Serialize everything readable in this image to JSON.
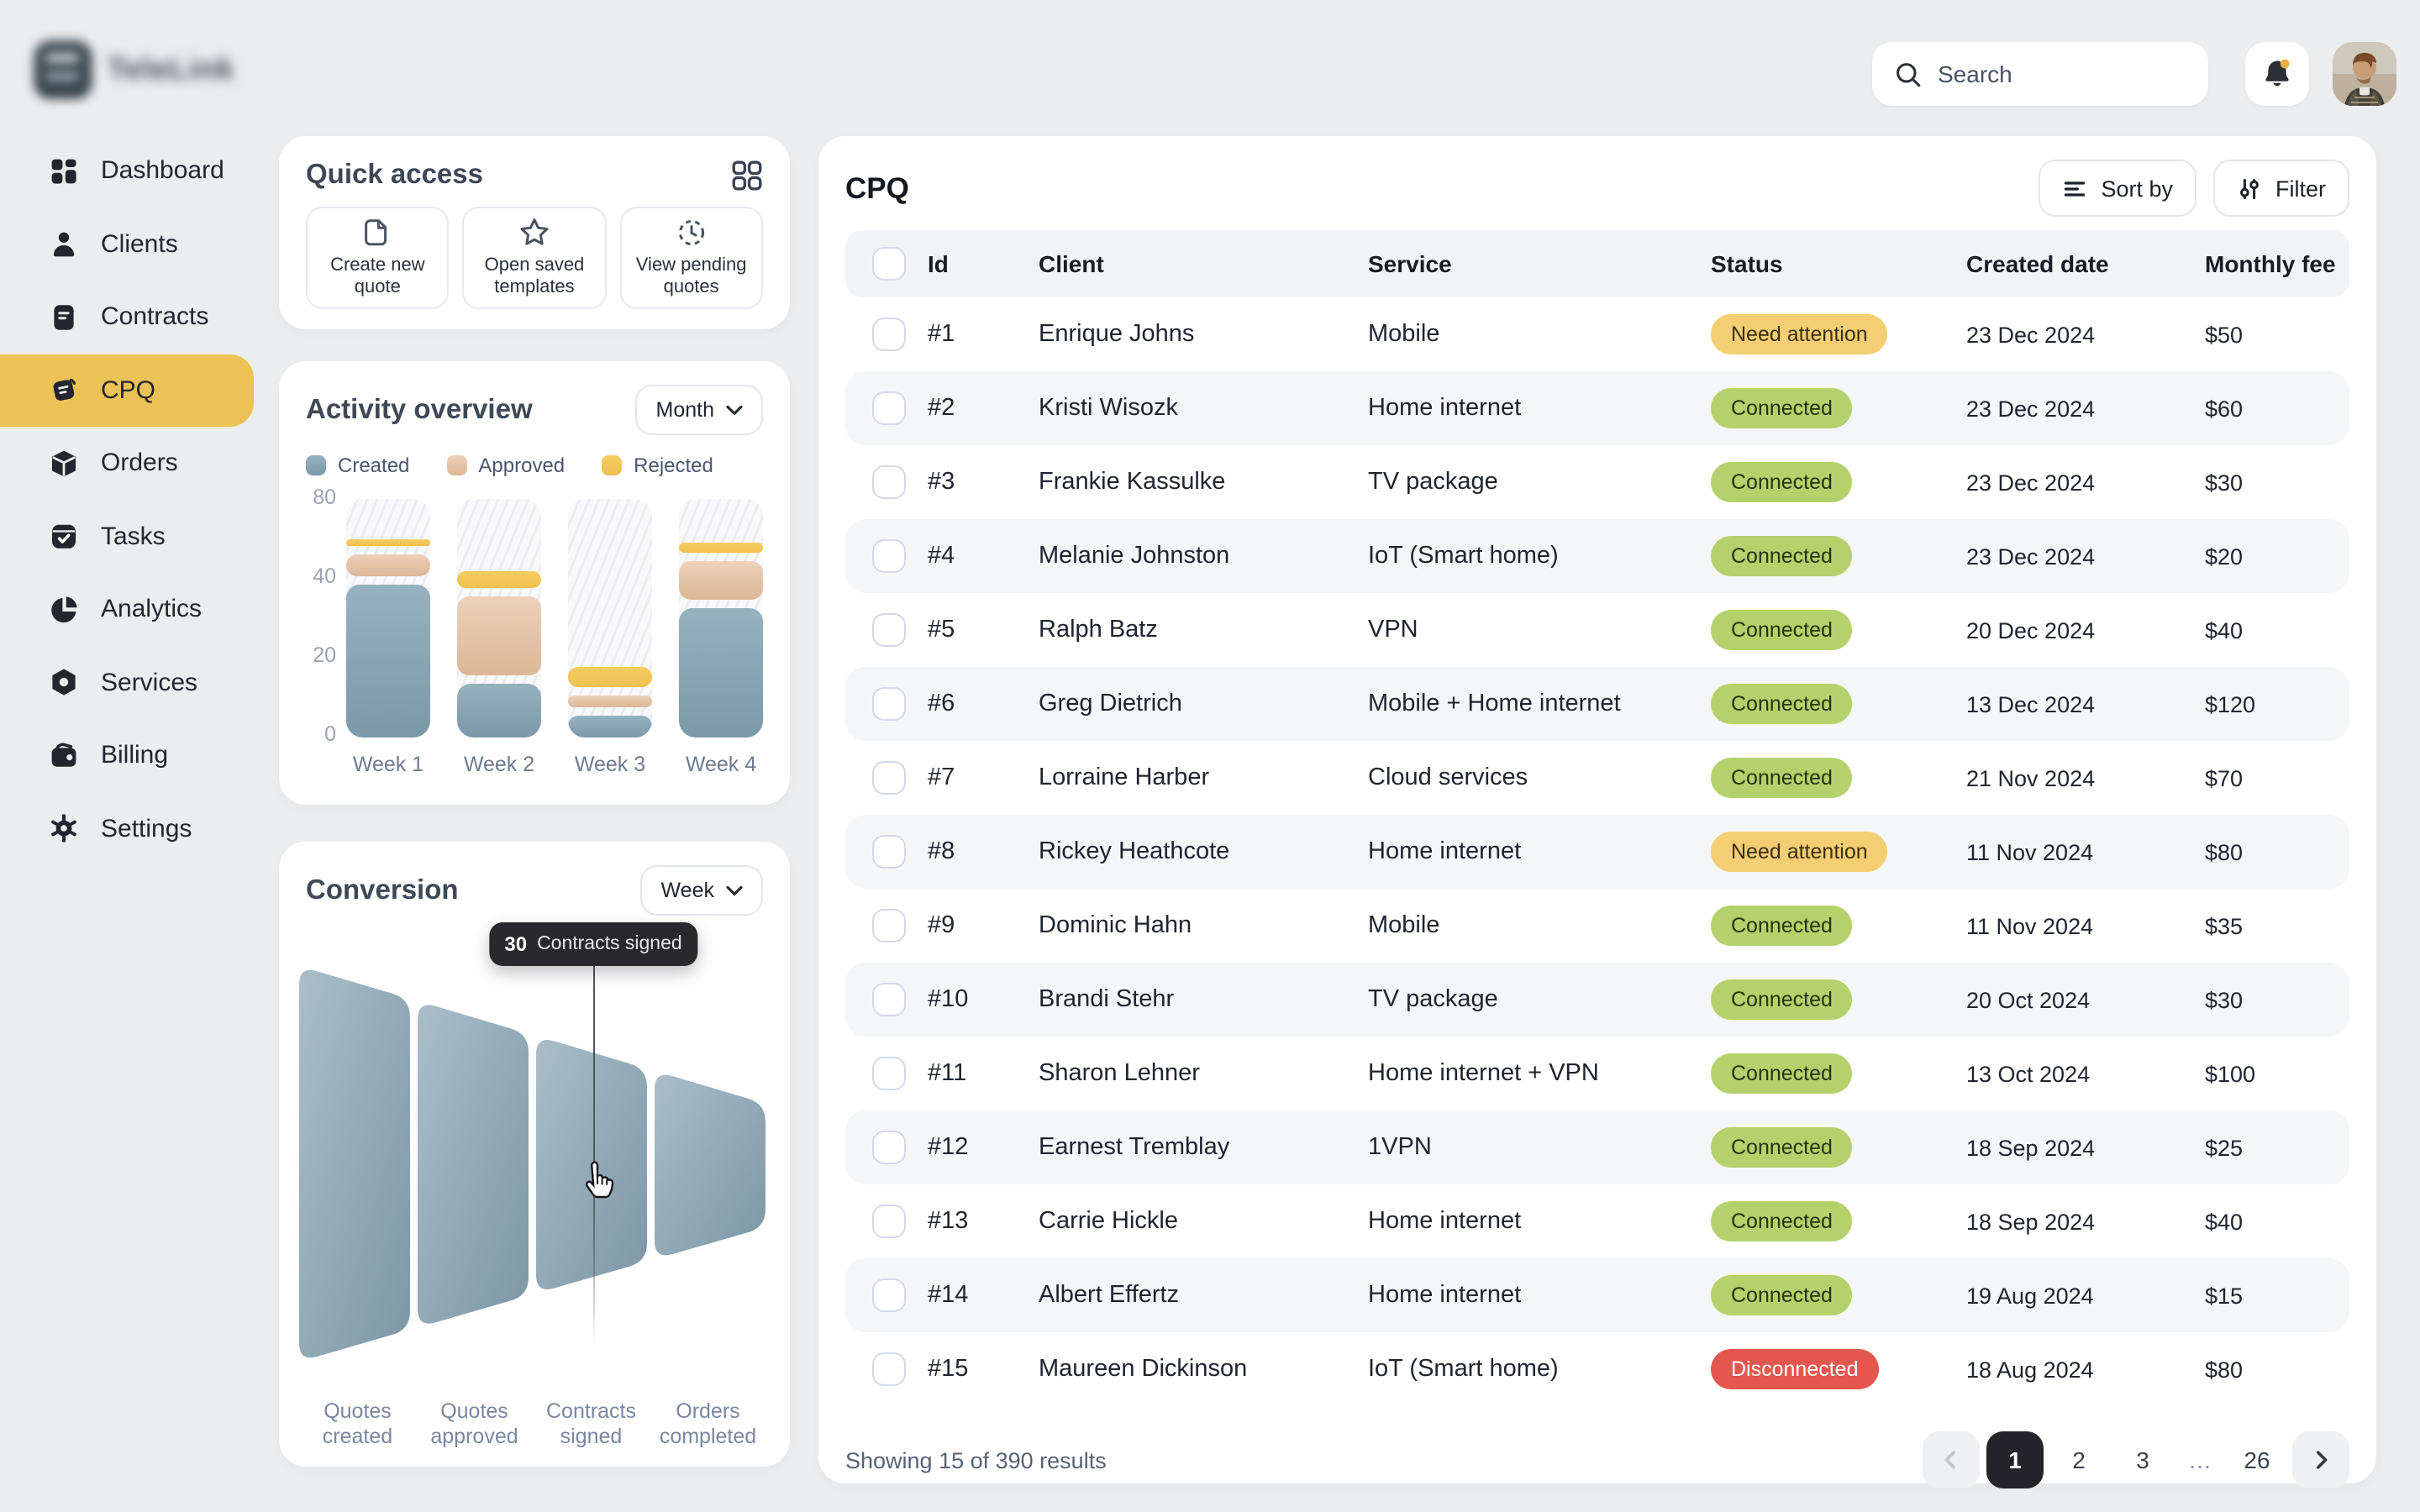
{
  "brand": {
    "name": "TeleLink"
  },
  "topbar": {
    "search_placeholder": "Search"
  },
  "sidebar": {
    "items": [
      {
        "id": "dashboard",
        "label": "Dashboard",
        "active": false
      },
      {
        "id": "clients",
        "label": "Clients",
        "active": false
      },
      {
        "id": "contracts",
        "label": "Contracts",
        "active": false
      },
      {
        "id": "cpq",
        "label": "CPQ",
        "active": true
      },
      {
        "id": "orders",
        "label": "Orders",
        "active": false
      },
      {
        "id": "tasks",
        "label": "Tasks",
        "active": false
      },
      {
        "id": "analytics",
        "label": "Analytics",
        "active": false
      },
      {
        "id": "services",
        "label": "Services",
        "active": false
      },
      {
        "id": "billing",
        "label": "Billing",
        "active": false
      },
      {
        "id": "settings",
        "label": "Settings",
        "active": false
      }
    ]
  },
  "quick_access": {
    "title": "Quick access",
    "actions": [
      {
        "id": "create-new-quote",
        "icon": "file",
        "label": "Create new\nquote"
      },
      {
        "id": "open-saved-templates",
        "icon": "star",
        "label": "Open saved\ntemplates"
      },
      {
        "id": "view-pending-quotes",
        "icon": "clock",
        "label": "View pending\nquotes"
      }
    ]
  },
  "activity": {
    "title": "Activity overview",
    "period": "Month",
    "chart_data": {
      "type": "bar",
      "stacked": true,
      "categories": [
        "Week 1",
        "Week 2",
        "Week 3",
        "Week 4"
      ],
      "series": [
        {
          "name": "Created",
          "color_top": "#97b1bf",
          "color_bottom": "#7b99a9",
          "values": [
            40,
            15,
            7,
            34
          ]
        },
        {
          "name": "Approved",
          "color_top": "#ecd1b9",
          "color_bottom": "#ddb797",
          "values": [
            15,
            22,
            5,
            18
          ]
        },
        {
          "name": "Rejected",
          "color_top": "#f6ce62",
          "color_bottom": "#eec04f",
          "values": [
            7,
            10,
            7,
            9
          ]
        }
      ],
      "y_ticks": [
        0,
        20,
        40,
        80
      ],
      "ylim": [
        0,
        80
      ],
      "axis_note": "ticks 0/20/40/80 evenly spaced",
      "legend_position": "top",
      "grid": false
    }
  },
  "conversion": {
    "title": "Conversion",
    "period": "Week",
    "tooltip": {
      "value": "30",
      "label": "Contracts signed"
    },
    "chart_data": {
      "type": "funnel",
      "stages": [
        {
          "label": "Quotes\ncreated"
        },
        {
          "label": "Quotes\napproved"
        },
        {
          "label": "Contracts\nsigned",
          "value": 30
        },
        {
          "label": "Orders\ncompleted"
        }
      ],
      "hovered_stage_index": 2
    }
  },
  "table": {
    "title": "CPQ",
    "sort_label": "Sort by",
    "filter_label": "Filter",
    "columns": [
      "Id",
      "Client",
      "Service",
      "Status",
      "Created date",
      "Monthly fee"
    ],
    "rows": [
      {
        "id": "#1",
        "client": "Enrique Johns",
        "service": "Mobile",
        "status": "Need attention",
        "status_type": "warning",
        "date": "23 Dec 2024",
        "fee": "$50"
      },
      {
        "id": "#2",
        "client": "Kristi Wisozk",
        "service": "Home internet",
        "status": "Connected",
        "status_type": "success",
        "date": "23 Dec 2024",
        "fee": "$60"
      },
      {
        "id": "#3",
        "client": "Frankie Kassulke",
        "service": "TV package",
        "status": "Connected",
        "status_type": "success",
        "date": "23 Dec 2024",
        "fee": "$30"
      },
      {
        "id": "#4",
        "client": "Melanie Johnston",
        "service": "IoT (Smart home)",
        "status": "Connected",
        "status_type": "success",
        "date": "23 Dec 2024",
        "fee": "$20"
      },
      {
        "id": "#5",
        "client": "Ralph Batz",
        "service": "VPN",
        "status": "Connected",
        "status_type": "success",
        "date": "20 Dec 2024",
        "fee": "$40"
      },
      {
        "id": "#6",
        "client": "Greg Dietrich",
        "service": "Mobile + Home internet",
        "status": "Connected",
        "status_type": "success",
        "date": "13 Dec 2024",
        "fee": "$120"
      },
      {
        "id": "#7",
        "client": "Lorraine Harber",
        "service": "Cloud services",
        "status": "Connected",
        "status_type": "success",
        "date": "21 Nov 2024",
        "fee": "$70"
      },
      {
        "id": "#8",
        "client": "Rickey Heathcote",
        "service": "Home internet",
        "status": "Need attention",
        "status_type": "warning",
        "date": "11 Nov 2024",
        "fee": "$80"
      },
      {
        "id": "#9",
        "client": "Dominic Hahn",
        "service": "Mobile",
        "status": "Connected",
        "status_type": "success",
        "date": "11 Nov 2024",
        "fee": "$35"
      },
      {
        "id": "#10",
        "client": "Brandi Stehr",
        "service": "TV package",
        "status": "Connected",
        "status_type": "success",
        "date": "20 Oct 2024",
        "fee": "$30"
      },
      {
        "id": "#11",
        "client": "Sharon Lehner",
        "service": "Home internet + VPN",
        "status": "Connected",
        "status_type": "success",
        "date": "13 Oct 2024",
        "fee": "$100"
      },
      {
        "id": "#12",
        "client": "Earnest Tremblay",
        "service": "1VPN",
        "status": "Connected",
        "status_type": "success",
        "date": "18 Sep 2024",
        "fee": "$25"
      },
      {
        "id": "#13",
        "client": "Carrie Hickle",
        "service": "Home internet",
        "status": "Connected",
        "status_type": "success",
        "date": "18 Sep 2024",
        "fee": "$40"
      },
      {
        "id": "#14",
        "client": "Albert Effertz",
        "service": "Home internet",
        "status": "Connected",
        "status_type": "success",
        "date": "19 Aug 2024",
        "fee": "$15"
      },
      {
        "id": "#15",
        "client": "Maureen Dickinson",
        "service": "IoT (Smart home)",
        "status": "Disconnected",
        "status_type": "danger",
        "date": "18 Aug 2024",
        "fee": "$80"
      }
    ],
    "footer": {
      "summary": "Showing 15 of 390 results",
      "pages": [
        "1",
        "2",
        "3",
        "…",
        "26"
      ],
      "active_page": "1"
    }
  },
  "colors": {
    "page_bg": "#ecedef",
    "accent_yellow": "#ecc257",
    "status_success_bg": "#b5d16c",
    "status_warning_bg": "#f5ce74",
    "status_danger_bg": "#e4574e",
    "funnel_from": "#a9bec9",
    "funnel_to": "#7d97a5",
    "tooltip_bg": "#29292d"
  }
}
